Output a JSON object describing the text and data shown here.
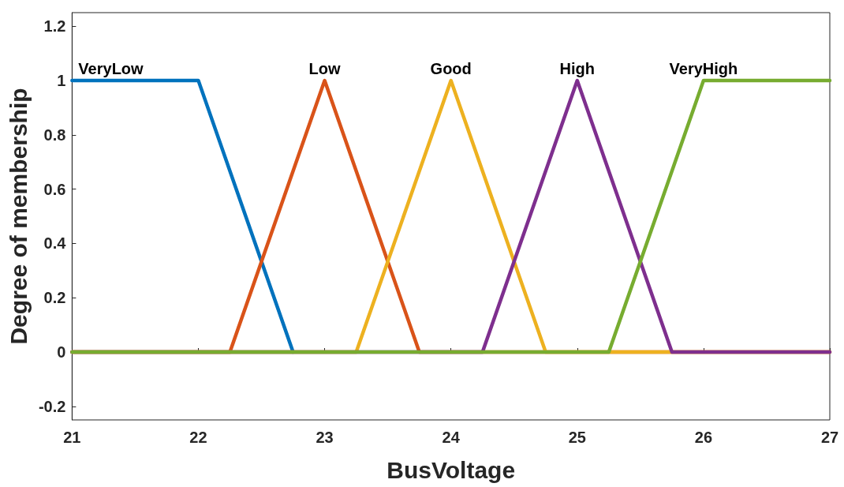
{
  "chart_data": {
    "type": "line",
    "xlabel": "BusVoltage",
    "ylabel": "Degree of membership",
    "xlim": [
      21,
      27
    ],
    "xticks": [
      21,
      22,
      23,
      24,
      25,
      26,
      27
    ],
    "ylim": [
      -0.25,
      1.25
    ],
    "yticks": [
      -0.2,
      0,
      0.2,
      0.4,
      0.6,
      0.8,
      1,
      1.2
    ],
    "grid": false,
    "legend": false,
    "marker": "none",
    "line_style": "solid",
    "series": [
      {
        "name": "VeryLow",
        "color": "#0072bd",
        "x": [
          21,
          22,
          22.75
        ],
        "values": [
          1,
          1,
          0
        ]
      },
      {
        "name": "Low",
        "color": "#d95319",
        "x": [
          21,
          22.25,
          23,
          23.75,
          27
        ],
        "values": [
          0,
          0,
          1,
          0,
          0
        ]
      },
      {
        "name": "Good",
        "color": "#edb120",
        "x": [
          21,
          23.25,
          24,
          24.75,
          27
        ],
        "values": [
          0,
          0,
          1,
          0,
          0
        ]
      },
      {
        "name": "High",
        "color": "#7e2f8e",
        "x": [
          21,
          24.25,
          25,
          25.75,
          27
        ],
        "values": [
          0,
          0,
          1,
          0,
          0
        ]
      },
      {
        "name": "VeryHigh",
        "color": "#77ac30",
        "x": [
          21,
          25.25,
          26,
          27
        ],
        "values": [
          0,
          0,
          1,
          1
        ]
      }
    ]
  }
}
